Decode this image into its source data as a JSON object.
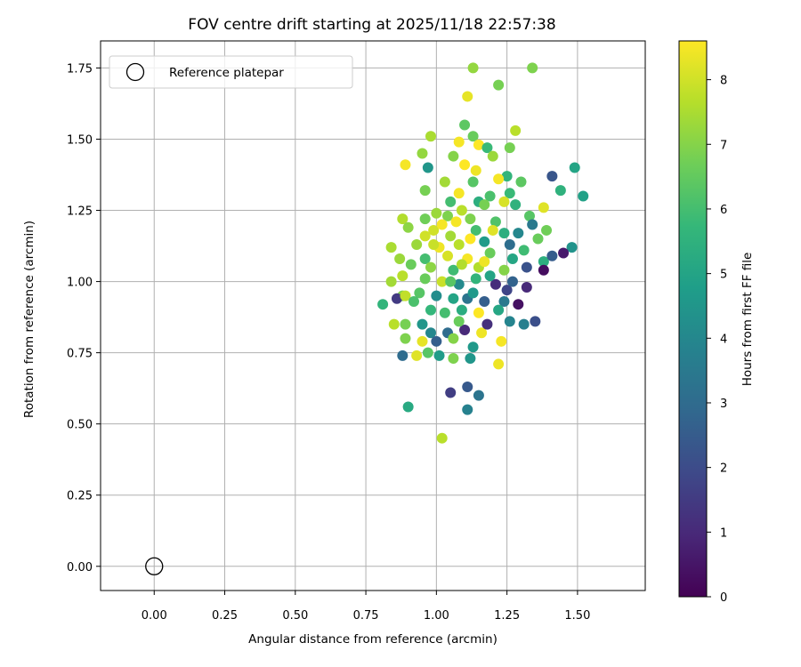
{
  "chart_data": {
    "type": "scatter",
    "title": "FOV centre drift starting at 2025/11/18 22:57:38",
    "xlabel": "Angular distance from reference (arcmin)",
    "ylabel": "Rotation from reference (arcmin)",
    "xlim": [
      -0.19,
      1.74
    ],
    "ylim": [
      -0.085,
      1.845
    ],
    "xticks": [
      0.0,
      0.25,
      0.5,
      0.75,
      1.0,
      1.25,
      1.5
    ],
    "xtick_labels": [
      "0.00",
      "0.25",
      "0.50",
      "0.75",
      "1.00",
      "1.25",
      "1.50"
    ],
    "yticks": [
      0.0,
      0.25,
      0.5,
      0.75,
      1.0,
      1.25,
      1.5,
      1.75
    ],
    "ytick_labels": [
      "0.00",
      "0.25",
      "0.50",
      "0.75",
      "1.00",
      "1.25",
      "1.50",
      "1.75"
    ],
    "grid": true,
    "legend": {
      "position": "top-left",
      "entries": [
        "Reference platepar"
      ]
    },
    "reference_point": {
      "label": "Reference platepar",
      "x": 0.0,
      "y": 0.0
    },
    "colorbar": {
      "label": "Hours from first FF file",
      "range": [
        0,
        8.6
      ],
      "ticks": [
        0,
        1,
        2,
        3,
        4,
        5,
        6,
        7,
        8
      ],
      "tick_labels": [
        "0",
        "1",
        "2",
        "3",
        "4",
        "5",
        "6",
        "7",
        "8"
      ],
      "colormap": [
        "#440154",
        "#482878",
        "#3e4989",
        "#31688e",
        "#26828e",
        "#1f9e89",
        "#35b779",
        "#6ece58",
        "#b5de2b",
        "#fde725"
      ]
    },
    "points": [
      [
        1.13,
        1.75,
        7.2
      ],
      [
        1.34,
        1.75,
        6.9
      ],
      [
        1.22,
        1.69,
        6.8
      ],
      [
        1.11,
        1.65,
        8.3
      ],
      [
        1.1,
        1.55,
        6.4
      ],
      [
        0.98,
        1.51,
        7.5
      ],
      [
        1.13,
        1.51,
        6.6
      ],
      [
        1.28,
        1.53,
        7.7
      ],
      [
        1.08,
        1.49,
        8.5
      ],
      [
        1.15,
        1.48,
        8.6
      ],
      [
        1.18,
        1.47,
        5.8
      ],
      [
        1.26,
        1.47,
        6.8
      ],
      [
        0.95,
        1.45,
        7.2
      ],
      [
        1.06,
        1.44,
        7.0
      ],
      [
        1.2,
        1.44,
        7.3
      ],
      [
        0.89,
        1.41,
        8.5
      ],
      [
        0.97,
        1.4,
        4.5
      ],
      [
        1.1,
        1.41,
        8.6
      ],
      [
        1.14,
        1.39,
        8.4
      ],
      [
        1.49,
        1.4,
        5.0
      ],
      [
        1.25,
        1.37,
        5.6
      ],
      [
        1.22,
        1.36,
        8.5
      ],
      [
        1.41,
        1.37,
        2.3
      ],
      [
        1.03,
        1.35,
        7.4
      ],
      [
        1.13,
        1.35,
        6.3
      ],
      [
        1.3,
        1.35,
        6.4
      ],
      [
        1.08,
        1.31,
        8.5
      ],
      [
        1.26,
        1.31,
        5.8
      ],
      [
        1.44,
        1.32,
        5.5
      ],
      [
        1.52,
        1.3,
        4.9
      ],
      [
        0.96,
        1.32,
        6.8
      ],
      [
        1.19,
        1.3,
        6.1
      ],
      [
        1.05,
        1.28,
        6.0
      ],
      [
        1.15,
        1.28,
        5.4
      ],
      [
        1.24,
        1.28,
        8.1
      ],
      [
        1.28,
        1.27,
        5.5
      ],
      [
        1.0,
        1.24,
        7.3
      ],
      [
        1.09,
        1.25,
        7.7
      ],
      [
        1.17,
        1.27,
        6.8
      ],
      [
        1.38,
        1.26,
        8.2
      ],
      [
        0.88,
        1.22,
        7.6
      ],
      [
        0.96,
        1.22,
        6.7
      ],
      [
        1.04,
        1.23,
        6.9
      ],
      [
        1.12,
        1.22,
        6.9
      ],
      [
        1.21,
        1.21,
        6.2
      ],
      [
        1.33,
        1.23,
        6.3
      ],
      [
        1.34,
        1.2,
        3.5
      ],
      [
        1.39,
        1.18,
        6.7
      ],
      [
        0.9,
        1.19,
        7.1
      ],
      [
        0.99,
        1.18,
        8.0
      ],
      [
        1.05,
        1.16,
        7.4
      ],
      [
        1.14,
        1.18,
        6.0
      ],
      [
        1.24,
        1.17,
        5.4
      ],
      [
        1.29,
        1.17,
        4.0
      ],
      [
        1.36,
        1.15,
        6.6
      ],
      [
        0.84,
        1.12,
        7.5
      ],
      [
        0.93,
        1.13,
        7.3
      ],
      [
        1.01,
        1.12,
        8.4
      ],
      [
        1.08,
        1.13,
        7.7
      ],
      [
        1.17,
        1.14,
        4.7
      ],
      [
        1.26,
        1.13,
        3.1
      ],
      [
        1.48,
        1.12,
        4.4
      ],
      [
        0.87,
        1.08,
        7.3
      ],
      [
        0.96,
        1.08,
        6.0
      ],
      [
        1.04,
        1.09,
        8.1
      ],
      [
        1.11,
        1.08,
        8.5
      ],
      [
        1.19,
        1.1,
        6.6
      ],
      [
        1.27,
        1.08,
        5.1
      ],
      [
        1.38,
        1.07,
        5.4
      ],
      [
        1.41,
        1.09,
        2.5
      ],
      [
        1.45,
        1.1,
        0.6
      ],
      [
        0.91,
        1.06,
        6.6
      ],
      [
        0.98,
        1.05,
        7.1
      ],
      [
        1.06,
        1.04,
        5.9
      ],
      [
        1.15,
        1.05,
        7.6
      ],
      [
        1.24,
        1.04,
        7.0
      ],
      [
        1.32,
        1.05,
        2.2
      ],
      [
        1.38,
        1.04,
        0.3
      ],
      [
        0.88,
        1.02,
        7.7
      ],
      [
        0.96,
        1.01,
        6.6
      ],
      [
        1.02,
        1.0,
        7.9
      ],
      [
        1.08,
        0.99,
        4.1
      ],
      [
        1.14,
        1.01,
        5.6
      ],
      [
        1.21,
        0.99,
        1.1
      ],
      [
        1.25,
        0.97,
        1.8
      ],
      [
        1.32,
        0.98,
        1.0
      ],
      [
        0.84,
        1.0,
        7.4
      ],
      [
        0.88,
        0.95,
        7.0
      ],
      [
        0.94,
        0.96,
        6.3
      ],
      [
        1.0,
        0.95,
        4.2
      ],
      [
        1.06,
        0.94,
        5.0
      ],
      [
        1.11,
        0.94,
        3.3
      ],
      [
        1.17,
        0.93,
        2.6
      ],
      [
        1.24,
        0.93,
        3.5
      ],
      [
        1.29,
        0.92,
        0.4
      ],
      [
        0.81,
        0.92,
        5.6
      ],
      [
        0.86,
        0.94,
        1.5
      ],
      [
        0.89,
        0.95,
        7.8
      ],
      [
        0.92,
        0.93,
        6.1
      ],
      [
        0.98,
        0.9,
        5.7
      ],
      [
        1.03,
        0.89,
        6.0
      ],
      [
        1.09,
        0.9,
        5.3
      ],
      [
        1.15,
        0.89,
        8.6
      ],
      [
        1.22,
        0.9,
        5.1
      ],
      [
        1.26,
        0.86,
        3.9
      ],
      [
        1.31,
        0.85,
        3.7
      ],
      [
        1.35,
        0.86,
        2.1
      ],
      [
        0.85,
        0.85,
        7.7
      ],
      [
        0.89,
        0.85,
        6.8
      ],
      [
        0.95,
        0.85,
        4.5
      ],
      [
        0.98,
        0.82,
        4.0
      ],
      [
        1.04,
        0.82,
        3.0
      ],
      [
        1.1,
        0.83,
        1.0
      ],
      [
        1.16,
        0.82,
        8.4
      ],
      [
        1.23,
        0.79,
        8.5
      ],
      [
        0.89,
        0.8,
        6.9
      ],
      [
        0.95,
        0.79,
        8.3
      ],
      [
        1.0,
        0.79,
        2.6
      ],
      [
        1.06,
        0.8,
        7.0
      ],
      [
        1.13,
        0.77,
        4.6
      ],
      [
        0.88,
        0.74,
        3.0
      ],
      [
        0.93,
        0.74,
        8.2
      ],
      [
        0.97,
        0.75,
        6.3
      ],
      [
        1.01,
        0.74,
        4.7
      ],
      [
        1.06,
        0.73,
        6.9
      ],
      [
        1.12,
        0.73,
        4.5
      ],
      [
        1.22,
        0.71,
        8.4
      ],
      [
        1.11,
        0.63,
        2.4
      ],
      [
        1.05,
        0.61,
        1.6
      ],
      [
        1.15,
        0.6,
        3.3
      ],
      [
        0.9,
        0.56,
        5.2
      ],
      [
        1.11,
        0.55,
        3.8
      ],
      [
        1.02,
        0.45,
        7.7
      ],
      [
        1.02,
        1.2,
        8.5
      ],
      [
        1.12,
        1.15,
        8.6
      ],
      [
        1.17,
        1.07,
        8.4
      ],
      [
        1.07,
        1.21,
        8.5
      ],
      [
        0.99,
        1.13,
        7.9
      ],
      [
        1.2,
        1.18,
        8.2
      ],
      [
        1.09,
        1.06,
        7.6
      ],
      [
        1.05,
        1.0,
        6.3
      ],
      [
        1.19,
        1.02,
        5.0
      ],
      [
        1.13,
        0.96,
        4.6
      ],
      [
        1.27,
        1.0,
        2.7
      ],
      [
        1.31,
        1.11,
        5.9
      ],
      [
        1.18,
        0.85,
        1.2
      ],
      [
        1.08,
        0.86,
        6.6
      ],
      [
        0.96,
        1.16,
        8.0
      ]
    ]
  }
}
